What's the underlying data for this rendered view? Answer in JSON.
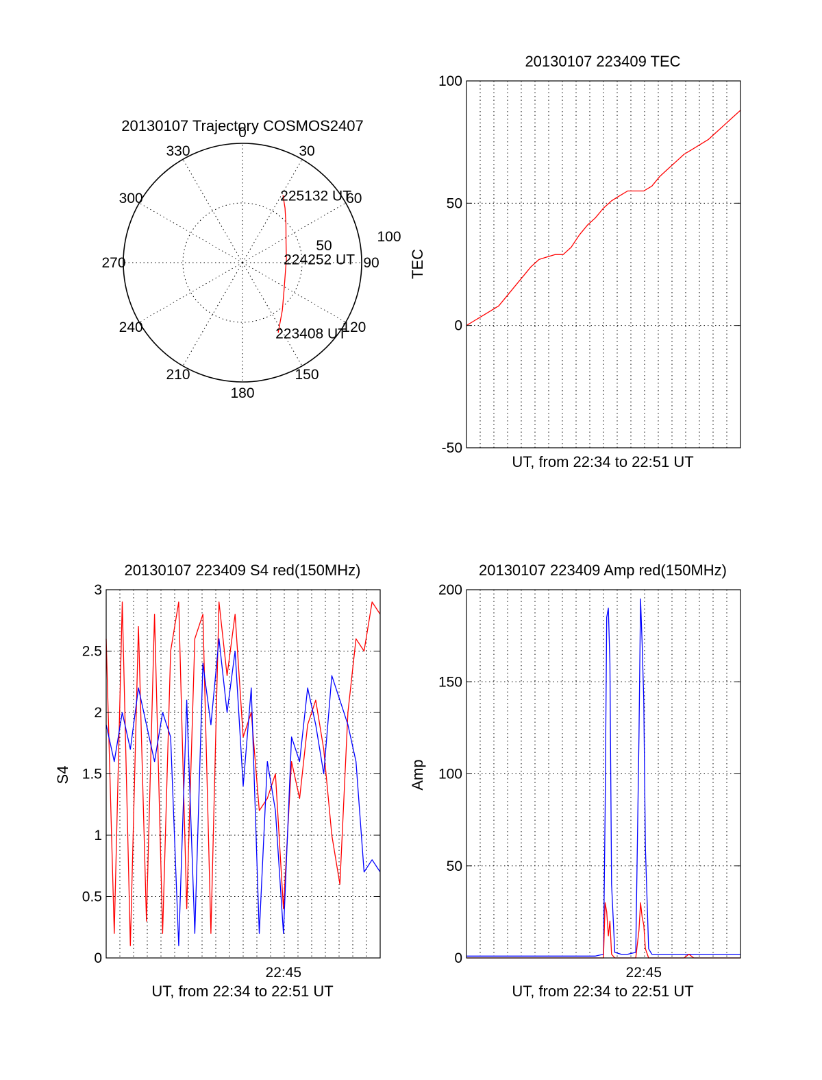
{
  "chart_data": [
    {
      "type": "polar",
      "title": "20130107 Trajectory COSMOS2407",
      "angle_labels": [
        "0",
        "30",
        "60",
        "90",
        "120",
        "150",
        "180",
        "210",
        "240",
        "270",
        "300",
        "330"
      ],
      "radial_labels": [
        "50",
        "100"
      ],
      "radial_range": [
        0,
        100
      ],
      "grid": true,
      "series": [
        {
          "color": "#ff0000",
          "points": [
            {
              "az": 153,
              "r": 66
            },
            {
              "az": 140,
              "r": 52
            },
            {
              "az": 124,
              "r": 42
            },
            {
              "az": 104,
              "r": 37
            },
            {
              "az": 85,
              "r": 37
            },
            {
              "az": 66,
              "r": 40
            },
            {
              "az": 48,
              "r": 49
            },
            {
              "az": 38,
              "r": 58
            },
            {
              "az": 31,
              "r": 66
            }
          ]
        }
      ],
      "annotations": [
        {
          "text": "225132 UT",
          "az": 31,
          "r": 66
        },
        {
          "text": "224252 UT",
          "az": 85,
          "r": 37
        },
        {
          "text": "223408 UT",
          "az": 153,
          "r": 66
        }
      ]
    },
    {
      "type": "line",
      "title": "20130107 223409 TEC",
      "xlabel": "UT, from 22:34 to 22:51 UT",
      "ylabel": "TEC",
      "xlim": [
        0,
        17
      ],
      "ylim": [
        -50,
        100
      ],
      "yticks": [
        "-50",
        "0",
        "50",
        "100"
      ],
      "xticks": [],
      "grid": true,
      "series": [
        {
          "color": "#ff0000",
          "x": [
            0,
            0.5,
            1,
            1.5,
            2,
            2.5,
            3,
            3.5,
            4,
            4.5,
            5,
            5.5,
            6,
            6.5,
            7,
            7.5,
            8,
            8.5,
            9,
            9.5,
            10,
            10.5,
            11,
            11.5,
            12,
            12.5,
            13,
            13.5,
            14,
            14.5,
            15,
            15.5,
            16,
            16.5,
            17
          ],
          "y": [
            0,
            2,
            4,
            6,
            8,
            12,
            16,
            20,
            24,
            27,
            28,
            29,
            29,
            32,
            37,
            41,
            44,
            48,
            51,
            53,
            55,
            55,
            55,
            57,
            61,
            64,
            67,
            70,
            72,
            74,
            76,
            79,
            82,
            85,
            88
          ]
        }
      ]
    },
    {
      "type": "line",
      "title": "20130107 223409 S4 red(150MHz)",
      "xlabel": "UT, from 22:34 to 22:51 UT",
      "ylabel": "S4",
      "xlim": [
        0,
        17
      ],
      "ylim": [
        0,
        3
      ],
      "yticks": [
        "0",
        "0.5",
        "1",
        "1.5",
        "2",
        "2.5",
        "3"
      ],
      "xticks": [
        {
          "label": "22:45",
          "x": 11
        }
      ],
      "grid": true,
      "series": [
        {
          "color": "#ff0000",
          "x": [
            0,
            0.5,
            1,
            1.5,
            2,
            2.5,
            3,
            3.5,
            4,
            4.5,
            5,
            5.5,
            6,
            6.5,
            7,
            7.5,
            8,
            8.5,
            9,
            9.5,
            10,
            10.5,
            11,
            11.5,
            12,
            12.5,
            13,
            13.5,
            14,
            14.5,
            15,
            15.5,
            16,
            16.5,
            17
          ],
          "y": [
            2.6,
            0.2,
            2.9,
            0.1,
            2.7,
            0.3,
            2.8,
            0.2,
            2.5,
            2.9,
            0.4,
            2.6,
            2.8,
            0.2,
            2.9,
            2.3,
            2.8,
            1.8,
            2.0,
            1.2,
            1.3,
            1.5,
            0.4,
            1.6,
            1.3,
            1.9,
            2.1,
            1.7,
            1.0,
            0.6,
            2.0,
            2.6,
            2.5,
            2.9,
            2.8
          ]
        },
        {
          "color": "#0000ff",
          "x": [
            0,
            0.5,
            1,
            1.5,
            2,
            2.5,
            3,
            3.5,
            4,
            4.5,
            5,
            5.5,
            6,
            6.5,
            7,
            7.5,
            8,
            8.5,
            9,
            9.5,
            10,
            10.5,
            11,
            11.5,
            12,
            12.5,
            13,
            13.5,
            14,
            14.5,
            15,
            15.5,
            16,
            16.5,
            17
          ],
          "y": [
            1.9,
            1.6,
            2.0,
            1.7,
            2.2,
            1.9,
            1.6,
            2.0,
            1.8,
            0.1,
            2.1,
            0.2,
            2.4,
            1.9,
            2.6,
            2.0,
            2.5,
            1.4,
            2.2,
            0.2,
            1.6,
            1.2,
            0.2,
            1.8,
            1.6,
            2.2,
            1.9,
            1.5,
            2.3,
            2.1,
            1.9,
            1.6,
            0.7,
            0.8,
            0.7
          ]
        }
      ]
    },
    {
      "type": "line",
      "title": "20130107 223409 Amp red(150MHz)",
      "xlabel": "UT, from 22:34 to 22:51 UT",
      "ylabel": "Amp",
      "xlim": [
        0,
        17
      ],
      "ylim": [
        0,
        200
      ],
      "yticks": [
        "0",
        "50",
        "100",
        "150",
        "200"
      ],
      "xticks": [
        {
          "label": "22:45",
          "x": 11
        }
      ],
      "grid": true,
      "series": [
        {
          "color": "#0000ff",
          "x": [
            0,
            1,
            2,
            3,
            4,
            5,
            6,
            7,
            8,
            8.5,
            8.6,
            8.7,
            8.8,
            8.9,
            9.0,
            9.2,
            9.6,
            10,
            10.5,
            10.7,
            10.8,
            10.9,
            11.0,
            11.1,
            11.3,
            11.5,
            12,
            13,
            14,
            15,
            16,
            17
          ],
          "y": [
            1,
            1,
            1,
            1,
            1,
            1,
            1,
            1,
            1,
            2,
            80,
            185,
            190,
            160,
            40,
            3,
            2,
            2,
            3,
            120,
            195,
            170,
            140,
            60,
            5,
            2,
            2,
            2,
            2,
            2,
            2,
            2
          ]
        },
        {
          "color": "#ff0000",
          "x": [
            0,
            8.5,
            8.6,
            8.7,
            8.8,
            8.9,
            9.0,
            9.2,
            10.5,
            10.7,
            10.8,
            10.9,
            11.0,
            11.1,
            11.3,
            13.5,
            13.8,
            14.1,
            17
          ],
          "y": [
            0,
            0,
            30,
            25,
            12,
            20,
            2,
            0,
            0,
            15,
            30,
            22,
            18,
            5,
            0,
            0,
            2,
            0,
            0
          ]
        }
      ]
    }
  ]
}
